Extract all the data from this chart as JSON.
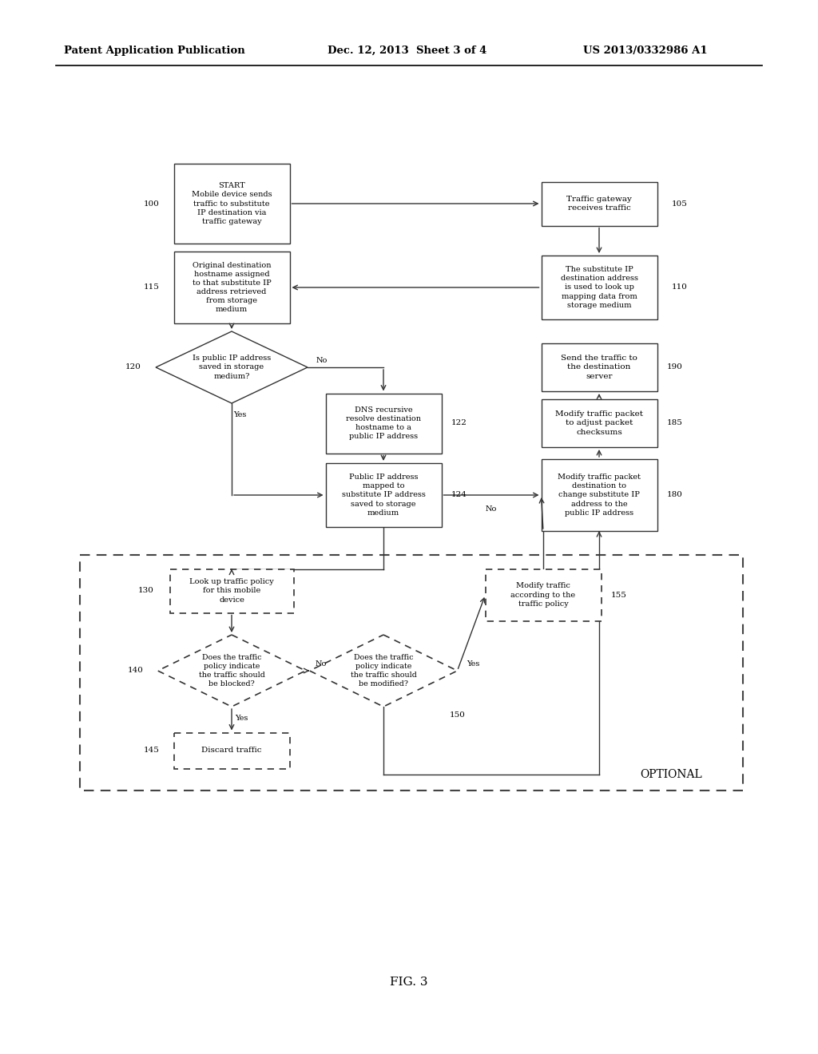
{
  "header_left": "Patent Application Publication",
  "header_mid": "Dec. 12, 2013  Sheet 3 of 4",
  "header_right": "US 2013/0332986 A1",
  "footer": "FIG. 3",
  "bg_color": "#ffffff"
}
